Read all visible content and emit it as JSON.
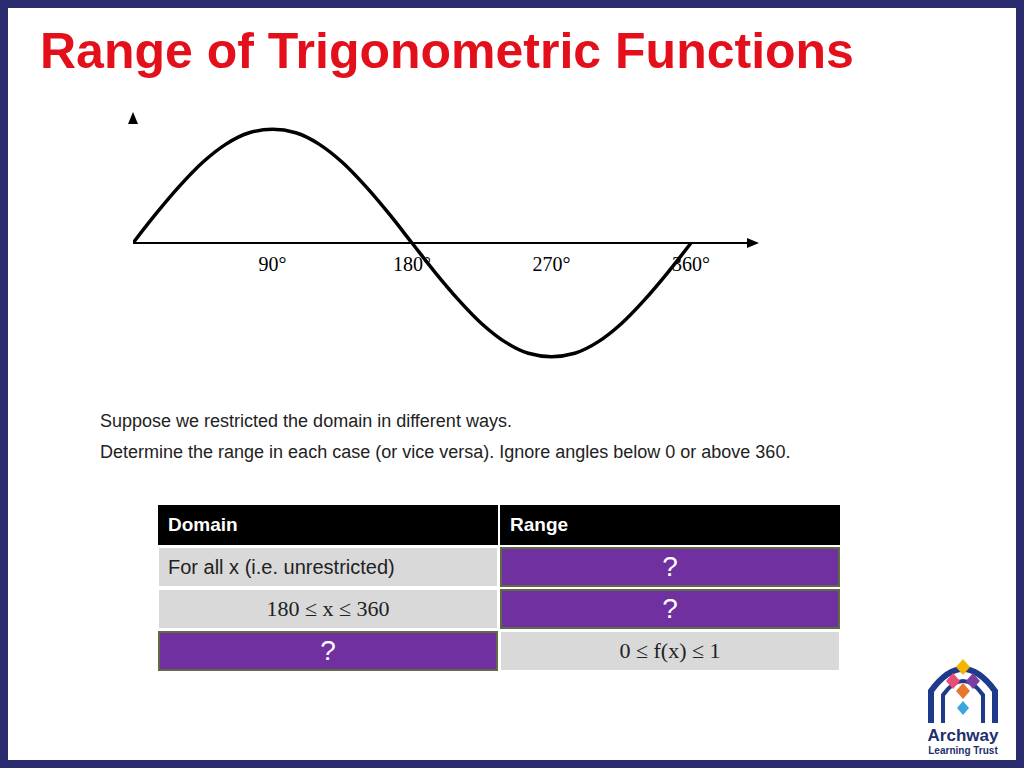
{
  "title": "Range of Trigonometric Functions",
  "instructions": [
    "Suppose we restricted the domain in different ways.",
    "Determine the range in each case (or vice versa). Ignore angles below 0 or above 360."
  ],
  "table": {
    "header": [
      "Domain",
      "Range"
    ],
    "rows": [
      [
        "For all x (i.e. unrestricted)",
        "?"
      ],
      [
        "180 ≤ x ≤ 360",
        "?"
      ],
      [
        "?",
        "0 ≤ f(x) ≤ 1"
      ]
    ]
  },
  "logo": {
    "name": "Archway",
    "subtitle": "Learning Trust"
  },
  "chart_data": {
    "type": "line",
    "x": [
      0,
      15,
      30,
      45,
      60,
      75,
      90,
      105,
      120,
      135,
      150,
      165,
      180,
      195,
      210,
      225,
      240,
      255,
      270,
      285,
      300,
      315,
      330,
      345,
      360
    ],
    "values": [
      0,
      0.26,
      0.5,
      0.71,
      0.87,
      0.97,
      1,
      0.97,
      0.87,
      0.71,
      0.5,
      0.26,
      0,
      -0.26,
      -0.5,
      -0.71,
      -0.87,
      -0.97,
      -1,
      -0.97,
      -0.87,
      -0.71,
      -0.5,
      -0.26,
      0
    ],
    "color": "#000000",
    "xlim": [
      0,
      400
    ],
    "xticks": [
      {
        "value": 90,
        "label": "90°"
      },
      {
        "value": 180,
        "label": "180°"
      },
      {
        "value": 270,
        "label": "270°"
      },
      {
        "value": 360,
        "label": "360°"
      }
    ],
    "ylim": [
      -1.1,
      1.1
    ],
    "tick_labels": "x",
    "grid": false
  }
}
